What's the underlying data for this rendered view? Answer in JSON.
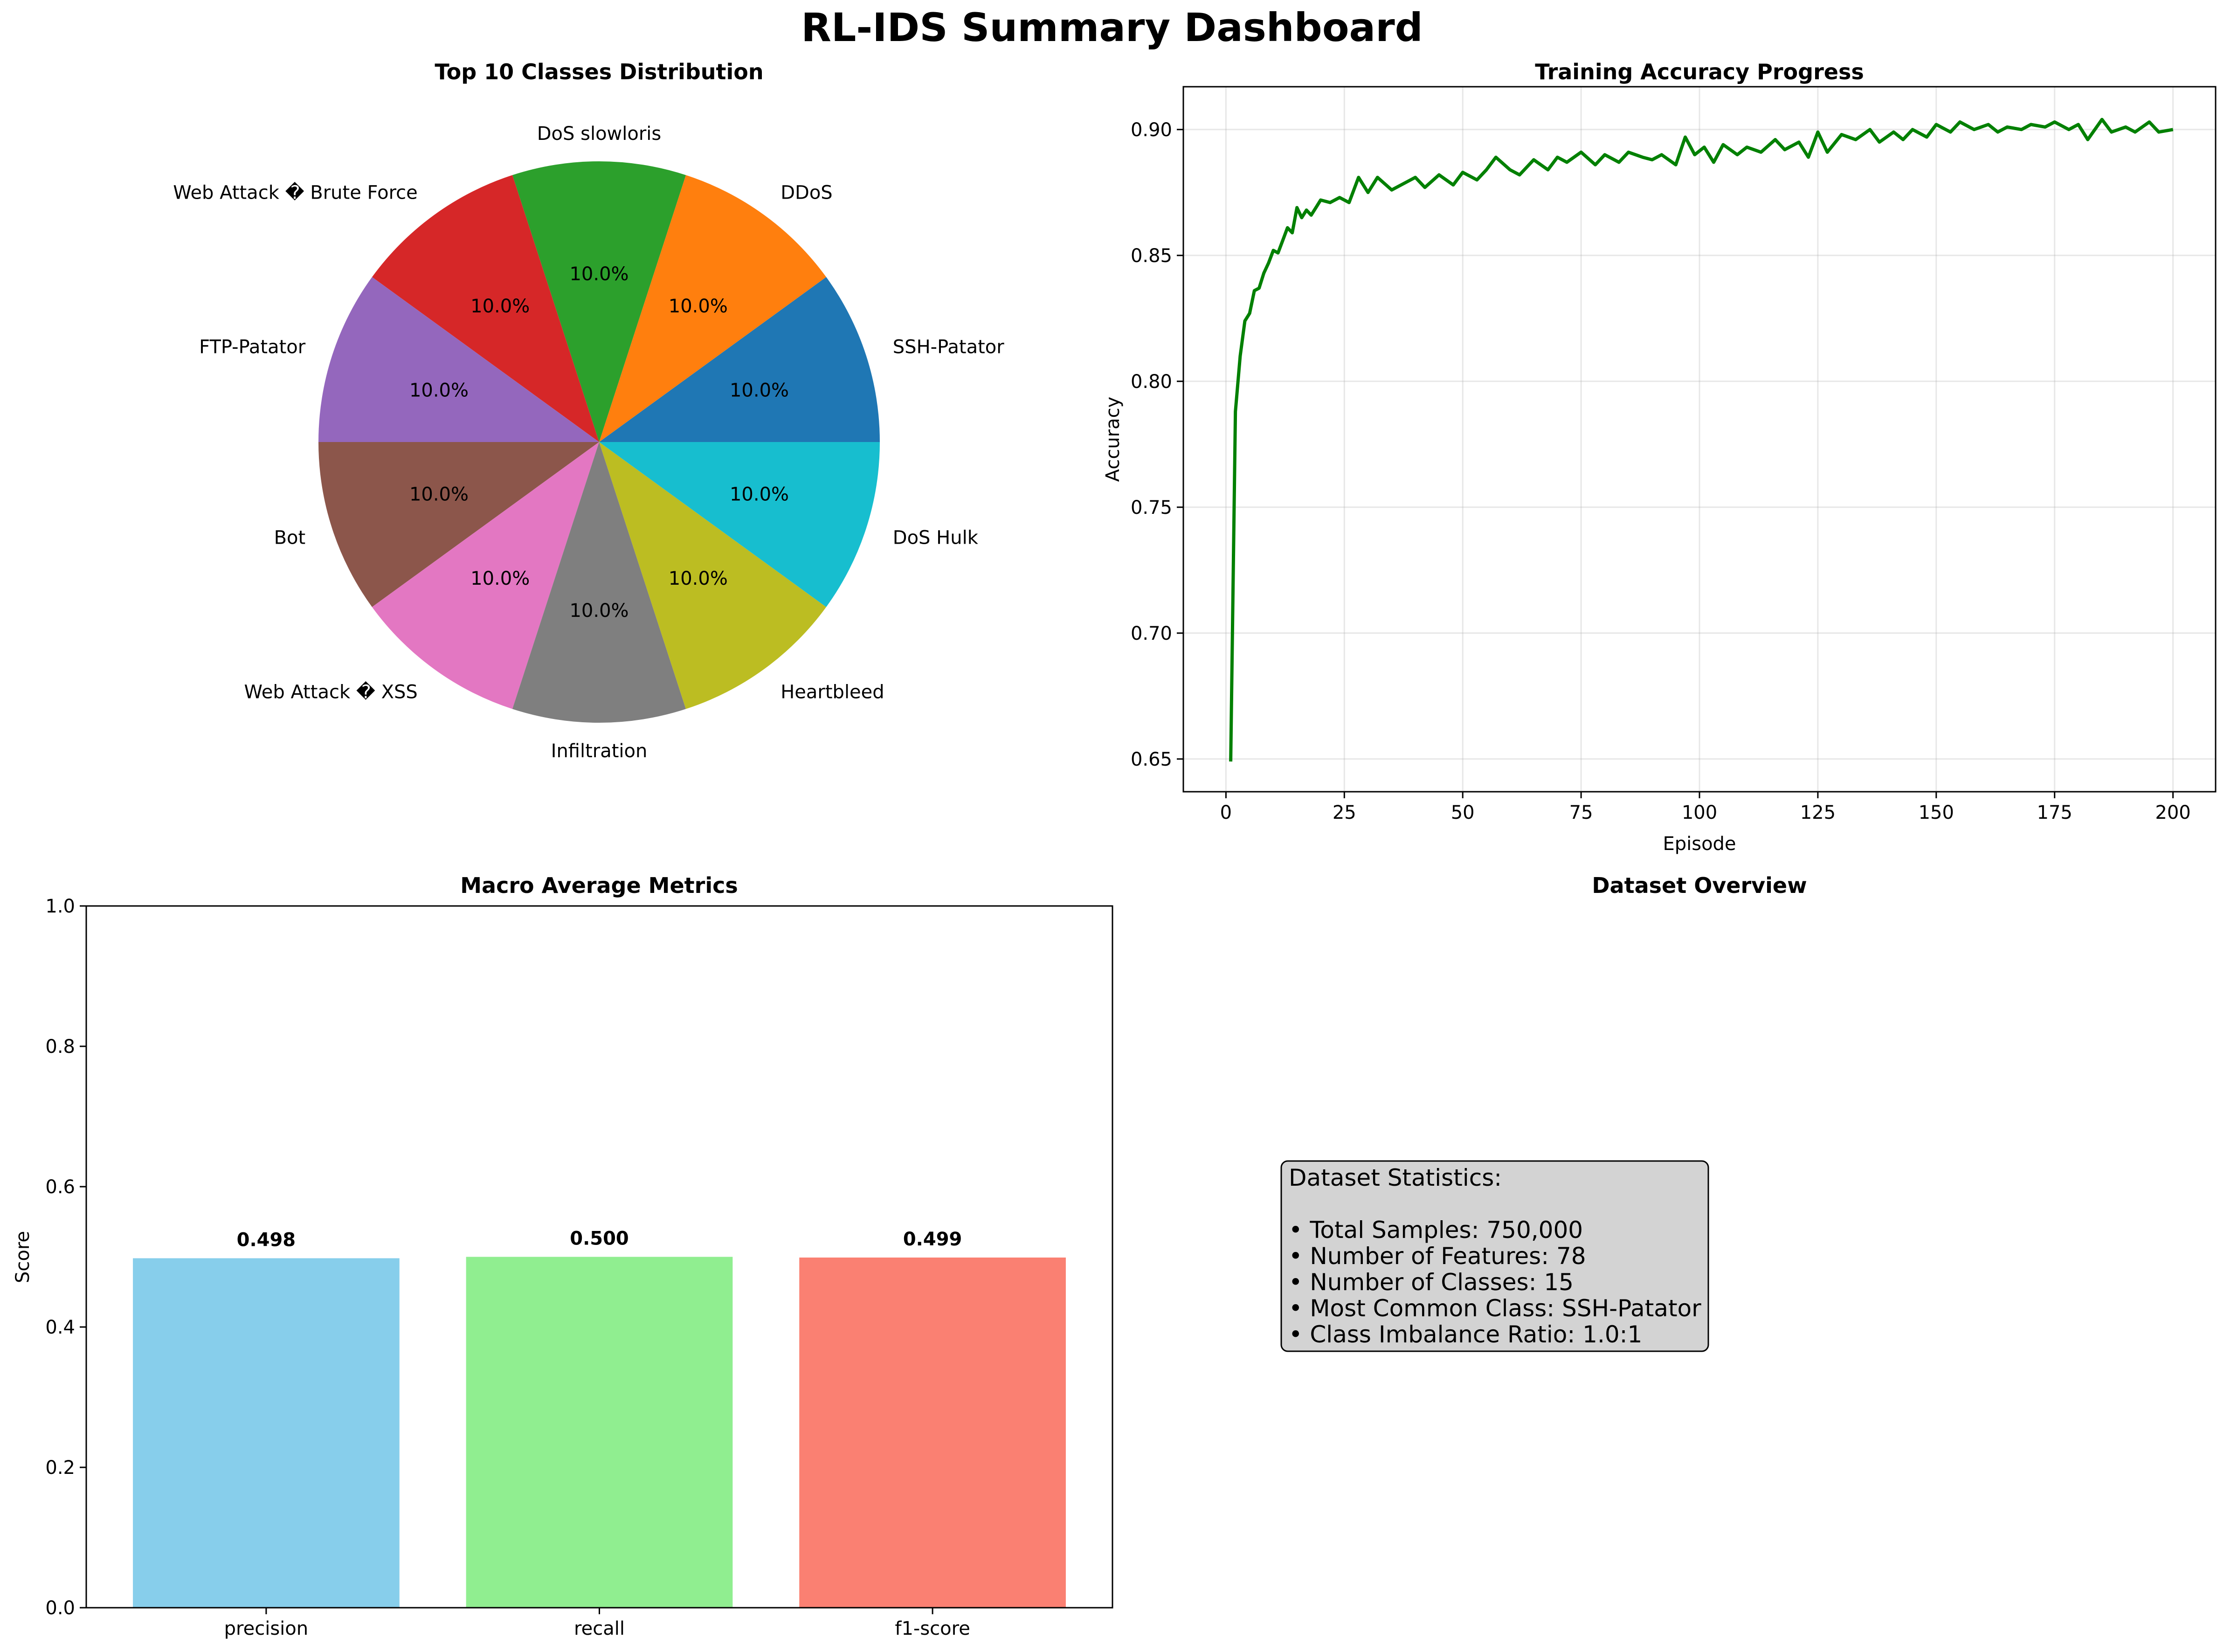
{
  "dashboard_title": "RL-IDS Summary Dashboard",
  "dataset_panel": {
    "title": "Dataset Overview",
    "box_title": "Dataset Statistics:",
    "lines": [
      "• Total Samples: 750,000",
      "• Number of Features: 78",
      "• Number of Classes: 15",
      "• Most Common Class: SSH-Patator",
      "• Class Imbalance Ratio: 1.0:1"
    ],
    "box_fill": "#d3d3d3"
  },
  "chart_data": [
    {
      "type": "pie",
      "title": "Top 10 Classes Distribution",
      "labels": [
        "SSH-Patator",
        "DDoS",
        "DoS slowloris",
        "Web Attack � Brute Force",
        "FTP-Patator",
        "Bot",
        "Web Attack � XSS",
        "Infiltration",
        "Heartbleed",
        "DoS Hulk"
      ],
      "values": [
        10,
        10,
        10,
        10,
        10,
        10,
        10,
        10,
        10,
        10
      ],
      "pct_labels": [
        "10.0%",
        "10.0%",
        "10.0%",
        "10.0%",
        "10.0%",
        "10.0%",
        "10.0%",
        "10.0%",
        "10.0%",
        "10.0%"
      ],
      "colors": [
        "#1f77b4",
        "#ff7f0e",
        "#2ca02c",
        "#d62728",
        "#9467bd",
        "#8c564b",
        "#e377c2",
        "#7f7f7f",
        "#bcbd22",
        "#17becf"
      ]
    },
    {
      "type": "line",
      "title": "Training Accuracy Progress",
      "xlabel": "Episode",
      "ylabel": "Accuracy",
      "xlim": [
        -9,
        209
      ],
      "ylim": [
        0.637,
        0.917
      ],
      "xticks": [
        0,
        25,
        50,
        75,
        100,
        125,
        150,
        175,
        200
      ],
      "yticks": [
        0.65,
        0.7,
        0.75,
        0.8,
        0.85,
        0.9
      ],
      "ytick_labels": [
        "0.65",
        "0.70",
        "0.75",
        "0.80",
        "0.85",
        "0.90"
      ],
      "grid": true,
      "color": "#008000",
      "x": [
        1,
        2,
        3,
        4,
        5,
        6,
        7,
        8,
        9,
        10,
        11,
        12,
        13,
        14,
        15,
        16,
        17,
        18,
        19,
        20,
        22,
        24,
        26,
        28,
        30,
        32,
        35,
        38,
        40,
        42,
        45,
        48,
        50,
        53,
        55,
        57,
        60,
        62,
        65,
        68,
        70,
        72,
        75,
        78,
        80,
        83,
        85,
        88,
        90,
        92,
        95,
        97,
        99,
        101,
        103,
        105,
        108,
        110,
        113,
        116,
        118,
        121,
        123,
        125,
        127,
        130,
        133,
        136,
        138,
        141,
        143,
        145,
        148,
        150,
        153,
        155,
        158,
        161,
        163,
        165,
        168,
        170,
        173,
        175,
        178,
        180,
        182,
        185,
        187,
        190,
        192,
        195,
        197,
        200
      ],
      "y": [
        0.649,
        0.788,
        0.81,
        0.824,
        0.827,
        0.836,
        0.837,
        0.843,
        0.847,
        0.852,
        0.851,
        0.856,
        0.861,
        0.859,
        0.869,
        0.865,
        0.868,
        0.866,
        0.869,
        0.872,
        0.871,
        0.873,
        0.871,
        0.881,
        0.875,
        0.881,
        0.876,
        0.879,
        0.881,
        0.877,
        0.882,
        0.878,
        0.883,
        0.88,
        0.884,
        0.889,
        0.884,
        0.882,
        0.888,
        0.884,
        0.889,
        0.887,
        0.891,
        0.886,
        0.89,
        0.887,
        0.891,
        0.889,
        0.888,
        0.89,
        0.886,
        0.897,
        0.89,
        0.893,
        0.887,
        0.894,
        0.89,
        0.893,
        0.891,
        0.896,
        0.892,
        0.895,
        0.889,
        0.899,
        0.891,
        0.898,
        0.896,
        0.9,
        0.895,
        0.899,
        0.896,
        0.9,
        0.897,
        0.902,
        0.899,
        0.903,
        0.9,
        0.902,
        0.899,
        0.901,
        0.9,
        0.902,
        0.901,
        0.903,
        0.9,
        0.902,
        0.896,
        0.904,
        0.899,
        0.901,
        0.899,
        0.903,
        0.899,
        0.9
      ]
    },
    {
      "type": "bar",
      "title": "Macro Average Metrics",
      "xlabel": "",
      "ylabel": "Score",
      "categories": [
        "precision",
        "recall",
        "f1-score"
      ],
      "values": [
        0.498,
        0.5,
        0.499
      ],
      "value_labels": [
        "0.498",
        "0.500",
        "0.499"
      ],
      "ylim": [
        0,
        1.0
      ],
      "yticks": [
        0.0,
        0.2,
        0.4,
        0.6,
        0.8,
        1.0
      ],
      "ytick_labels": [
        "0.0",
        "0.2",
        "0.4",
        "0.6",
        "0.8",
        "1.0"
      ],
      "colors": [
        "#87ceeb",
        "#90ee90",
        "#fa8072"
      ],
      "grid": false
    }
  ]
}
